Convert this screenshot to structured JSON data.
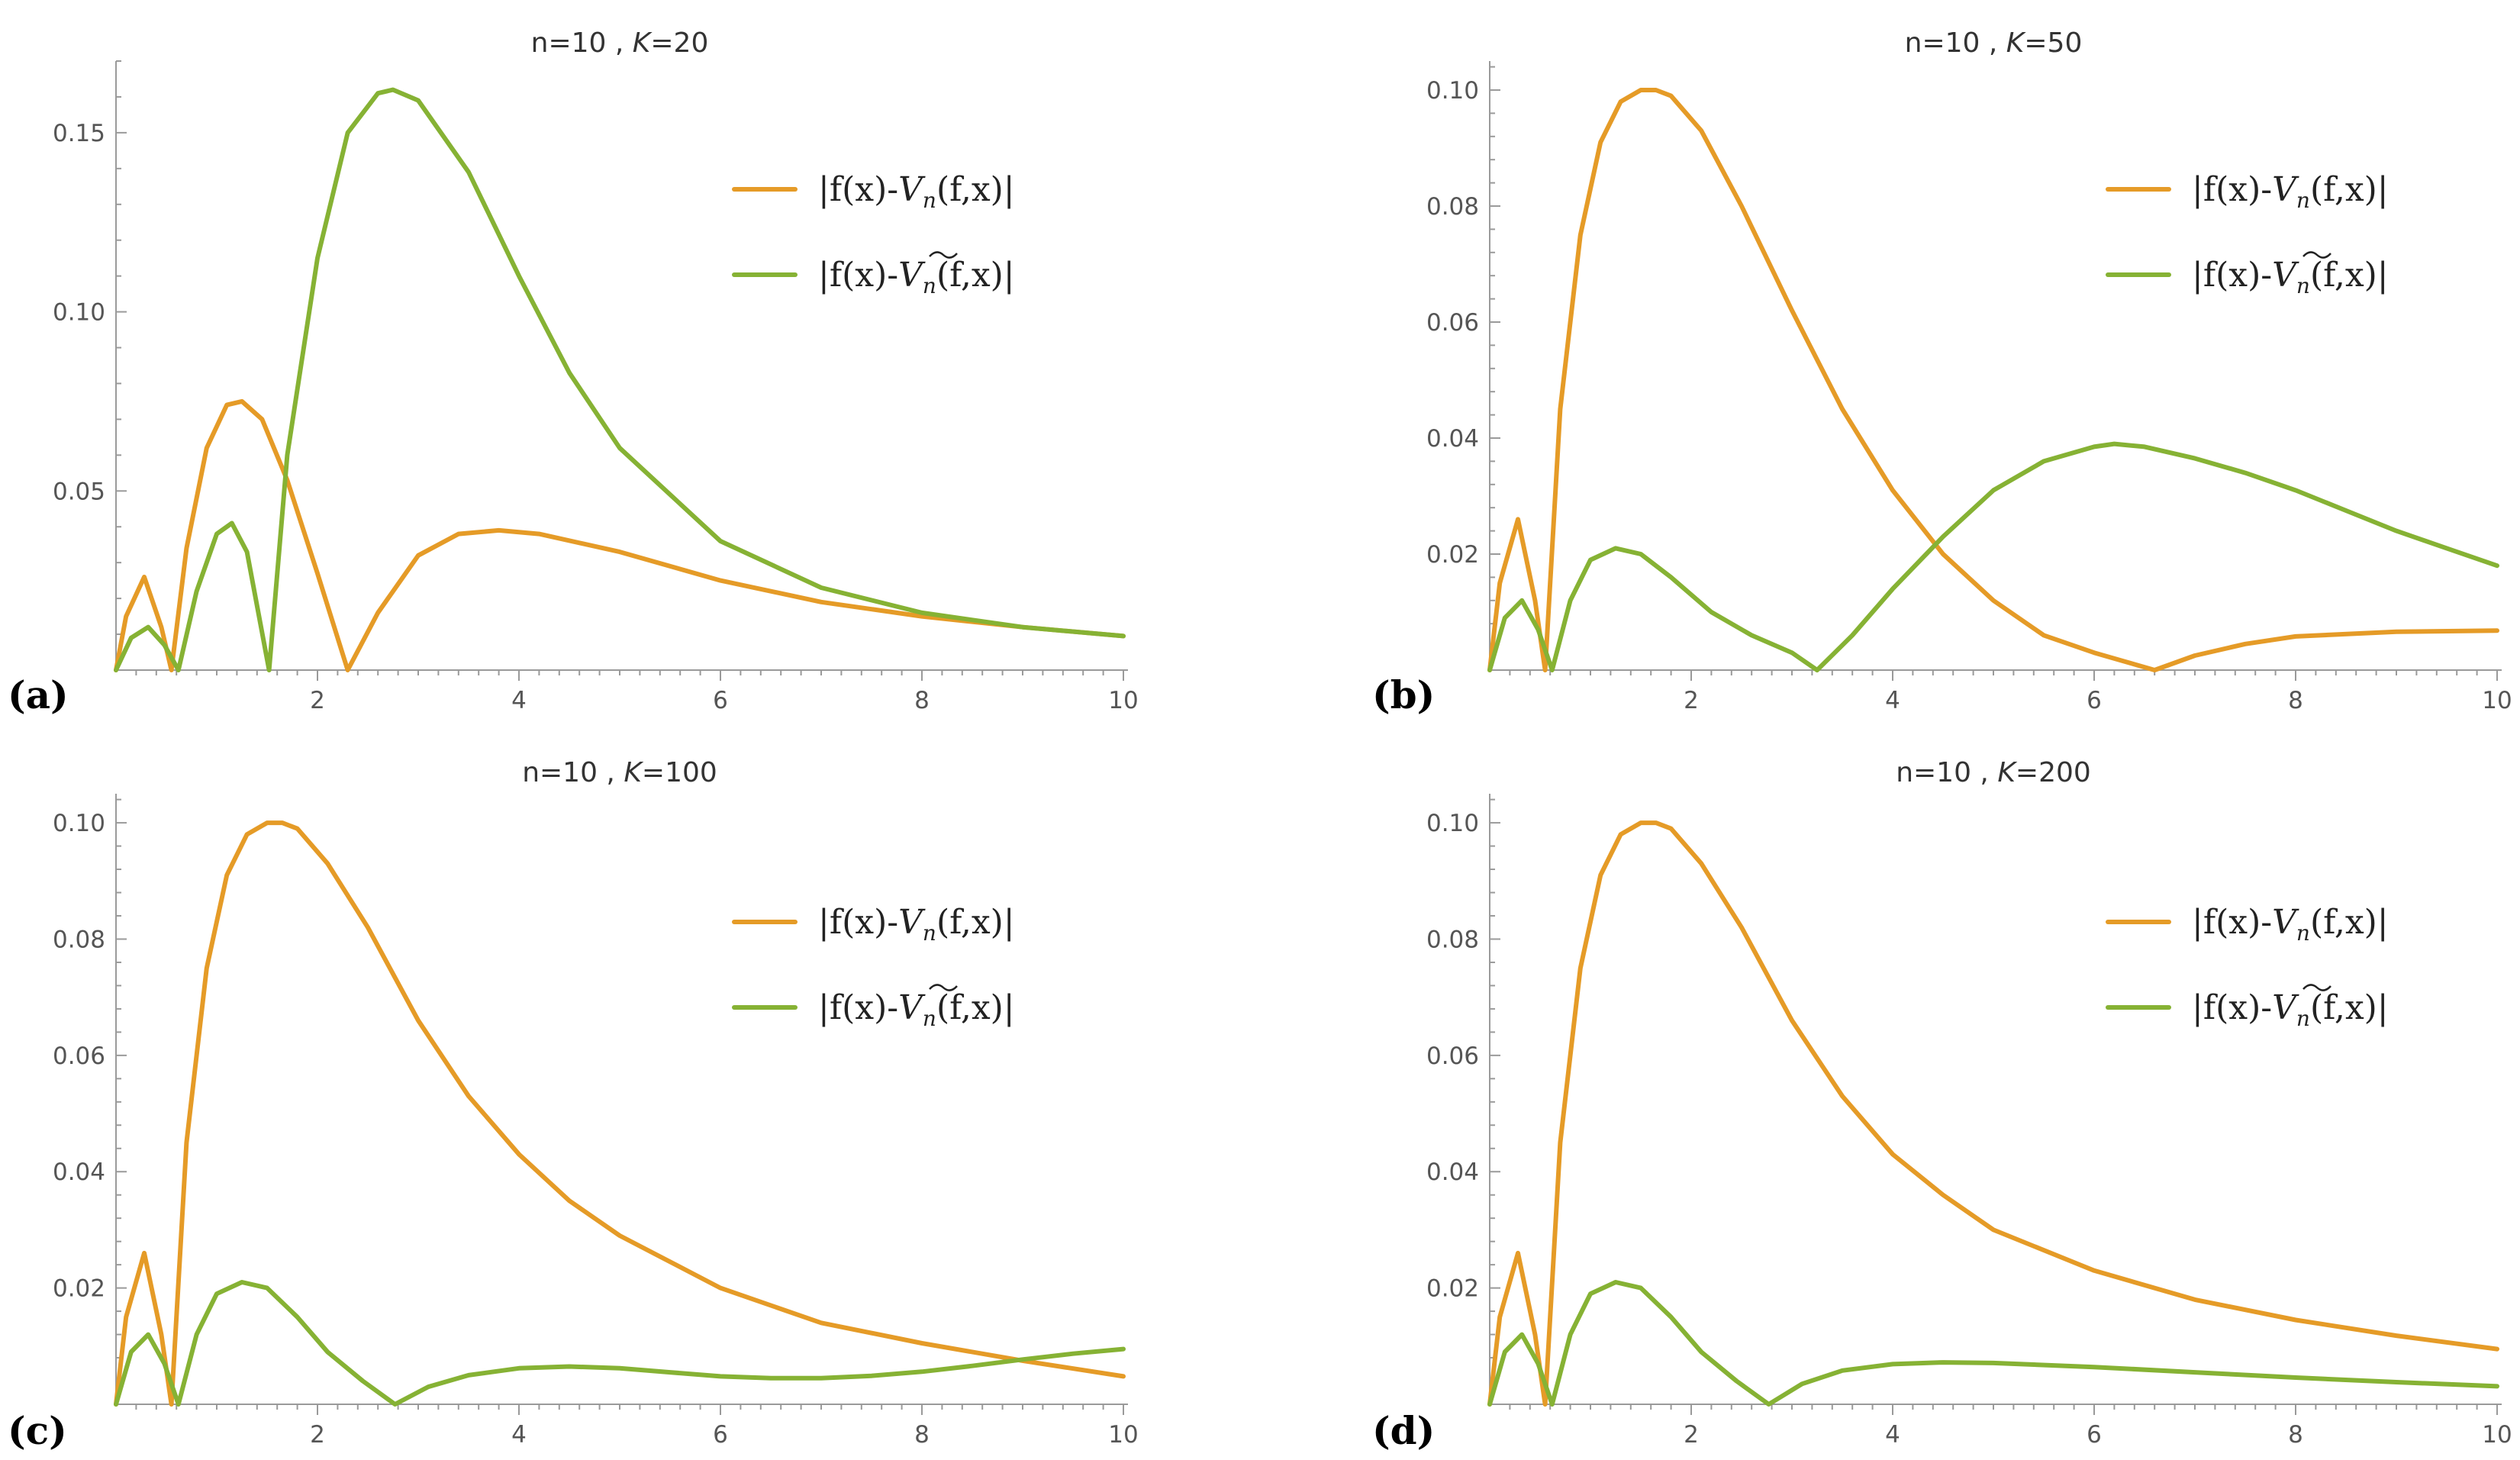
{
  "colors": {
    "orange": "#e59b27",
    "green": "#86b234",
    "axis": "#9a9a9a"
  },
  "chart_data": [
    {
      "type": "line",
      "panel_label": "(a)",
      "title": {
        "n_part": "n=10 ,",
        "k_symbol": "K",
        "k_part": "=20"
      },
      "xlim": [
        0,
        10
      ],
      "ylim": [
        0,
        0.17
      ],
      "x_ticks": [
        2,
        4,
        6,
        8,
        10
      ],
      "x_tick_labels": [
        "2",
        "4",
        "6",
        "8",
        "10"
      ],
      "y_ticks": [
        0.05,
        0.1,
        0.15
      ],
      "y_tick_labels": [
        "0.05",
        "0.10",
        "0.15"
      ],
      "legend": [
        {
          "f_part": "|f(x)-",
          "v_part": "V",
          "sub": "n",
          "end_part": "(f,x)|",
          "tilde": false,
          "color": "#e59b27"
        },
        {
          "f_part": "|f(x)-",
          "v_part": "V",
          "sub": "n",
          "end_part": "(f,x)|",
          "tilde": true,
          "color": "#86b234"
        }
      ],
      "series": [
        {
          "name": "|f(x)-V_n(f,x)|",
          "color": "#e59b27",
          "x": [
            0,
            0.1,
            0.28,
            0.45,
            0.55,
            0.7,
            0.9,
            1.1,
            1.25,
            1.45,
            1.7,
            2.0,
            2.3,
            2.6,
            3.0,
            3.4,
            3.8,
            4.2,
            5.0,
            6.0,
            7.0,
            8.0,
            9.0,
            10.0
          ],
          "values": [
            0,
            0.015,
            0.026,
            0.012,
            0,
            0.034,
            0.062,
            0.074,
            0.075,
            0.07,
            0.053,
            0.027,
            0,
            0.016,
            0.032,
            0.038,
            0.039,
            0.038,
            0.033,
            0.025,
            0.019,
            0.015,
            0.012,
            0.0095
          ]
        },
        {
          "name": "|f(x)-Ṽ_n(f,x)|",
          "color": "#86b234",
          "x": [
            0,
            0.15,
            0.32,
            0.48,
            0.62,
            0.8,
            1.0,
            1.15,
            1.3,
            1.52,
            1.7,
            2.0,
            2.3,
            2.6,
            2.75,
            3.0,
            3.5,
            4.0,
            4.5,
            5.0,
            6.0,
            7.0,
            8.0,
            9.0,
            10.0
          ],
          "values": [
            0,
            0.009,
            0.012,
            0.007,
            0,
            0.022,
            0.038,
            0.041,
            0.033,
            0,
            0.06,
            0.115,
            0.15,
            0.161,
            0.162,
            0.159,
            0.139,
            0.11,
            0.083,
            0.062,
            0.036,
            0.023,
            0.016,
            0.012,
            0.0095
          ]
        }
      ]
    },
    {
      "type": "line",
      "panel_label": "(b)",
      "title": {
        "n_part": "n=10 ,",
        "k_symbol": "K",
        "k_part": "=50"
      },
      "xlim": [
        0,
        10
      ],
      "ylim": [
        0,
        0.105
      ],
      "x_ticks": [
        2,
        4,
        6,
        8,
        10
      ],
      "x_tick_labels": [
        "2",
        "4",
        "6",
        "8",
        "10"
      ],
      "y_ticks": [
        0.02,
        0.04,
        0.06,
        0.08,
        0.1
      ],
      "y_tick_labels": [
        "0.02",
        "0.04",
        "0.06",
        "0.08",
        "0.10"
      ],
      "legend": [
        {
          "f_part": "|f(x)-",
          "v_part": "V",
          "sub": "n",
          "end_part": "(f,x)|",
          "tilde": false,
          "color": "#e59b27"
        },
        {
          "f_part": "|f(x)-",
          "v_part": "V",
          "sub": "n",
          "end_part": "(f,x)|",
          "tilde": true,
          "color": "#86b234"
        }
      ],
      "series": [
        {
          "name": "|f(x)-V_n(f,x)|",
          "color": "#e59b27",
          "x": [
            0,
            0.1,
            0.28,
            0.45,
            0.55,
            0.7,
            0.9,
            1.1,
            1.3,
            1.5,
            1.65,
            1.8,
            2.1,
            2.5,
            3.0,
            3.5,
            4.0,
            4.5,
            5.0,
            5.5,
            6.0,
            6.3,
            6.6,
            7.0,
            7.5,
            8.0,
            9.0,
            10.0
          ],
          "values": [
            0,
            0.015,
            0.026,
            0.012,
            0,
            0.045,
            0.075,
            0.091,
            0.098,
            0.1,
            0.1,
            0.099,
            0.093,
            0.08,
            0.062,
            0.045,
            0.031,
            0.02,
            0.012,
            0.006,
            0.003,
            0.0015,
            0,
            0.0025,
            0.0045,
            0.0058,
            0.0066,
            0.0068
          ]
        },
        {
          "name": "|f(x)-Ṽ_n(f,x)|",
          "color": "#86b234",
          "x": [
            0,
            0.15,
            0.32,
            0.48,
            0.62,
            0.8,
            1.0,
            1.25,
            1.5,
            1.8,
            2.2,
            2.6,
            3.0,
            3.25,
            3.6,
            4.0,
            4.5,
            5.0,
            5.5,
            6.0,
            6.2,
            6.5,
            7.0,
            7.5,
            8.0,
            8.5,
            9.0,
            9.5,
            10.0
          ],
          "values": [
            0,
            0.009,
            0.012,
            0.007,
            0,
            0.012,
            0.019,
            0.021,
            0.02,
            0.016,
            0.01,
            0.006,
            0.003,
            0,
            0.006,
            0.014,
            0.023,
            0.031,
            0.036,
            0.0385,
            0.039,
            0.0385,
            0.0365,
            0.034,
            0.031,
            0.0275,
            0.024,
            0.021,
            0.018
          ]
        }
      ]
    },
    {
      "type": "line",
      "panel_label": "(c)",
      "title": {
        "n_part": "n=10 ,",
        "k_symbol": "K",
        "k_part": "=100"
      },
      "xlim": [
        0,
        10
      ],
      "ylim": [
        0,
        0.105
      ],
      "x_ticks": [
        2,
        4,
        6,
        8,
        10
      ],
      "x_tick_labels": [
        "2",
        "4",
        "6",
        "8",
        "10"
      ],
      "y_ticks": [
        0.02,
        0.04,
        0.06,
        0.08,
        0.1
      ],
      "y_tick_labels": [
        "0.02",
        "0.04",
        "0.06",
        "0.08",
        "0.10"
      ],
      "legend": [
        {
          "f_part": "|f(x)-",
          "v_part": "V",
          "sub": "n",
          "end_part": "(f,x)|",
          "tilde": false,
          "color": "#e59b27"
        },
        {
          "f_part": "|f(x)-",
          "v_part": "V",
          "sub": "n",
          "end_part": "(f,x)|",
          "tilde": true,
          "color": "#86b234"
        }
      ],
      "series": [
        {
          "name": "|f(x)-V_n(f,x)|",
          "color": "#e59b27",
          "x": [
            0,
            0.1,
            0.28,
            0.45,
            0.55,
            0.7,
            0.9,
            1.1,
            1.3,
            1.5,
            1.65,
            1.8,
            2.1,
            2.5,
            3.0,
            3.5,
            4.0,
            4.5,
            5.0,
            6.0,
            7.0,
            8.0,
            9.0,
            10.0
          ],
          "values": [
            0,
            0.015,
            0.026,
            0.012,
            0,
            0.045,
            0.075,
            0.091,
            0.098,
            0.1,
            0.1,
            0.099,
            0.093,
            0.082,
            0.066,
            0.053,
            0.043,
            0.035,
            0.029,
            0.02,
            0.014,
            0.0105,
            0.0075,
            0.0048
          ]
        },
        {
          "name": "|f(x)-Ṽ_n(f,x)|",
          "color": "#86b234",
          "x": [
            0,
            0.15,
            0.32,
            0.48,
            0.62,
            0.8,
            1.0,
            1.25,
            1.5,
            1.8,
            2.1,
            2.45,
            2.77,
            3.1,
            3.5,
            4.0,
            4.5,
            5.0,
            5.5,
            6.0,
            6.5,
            7.0,
            7.5,
            8.0,
            8.5,
            9.0,
            9.5,
            10.0
          ],
          "values": [
            0,
            0.009,
            0.012,
            0.007,
            0,
            0.012,
            0.019,
            0.021,
            0.02,
            0.015,
            0.009,
            0.004,
            0,
            0.003,
            0.005,
            0.0062,
            0.0065,
            0.0062,
            0.0055,
            0.0048,
            0.0045,
            0.0045,
            0.0049,
            0.0056,
            0.0066,
            0.0077,
            0.0087,
            0.0095
          ]
        }
      ]
    },
    {
      "type": "line",
      "panel_label": "(d)",
      "title": {
        "n_part": "n=10 ,",
        "k_symbol": "K",
        "k_part": "=200"
      },
      "xlim": [
        0,
        10
      ],
      "ylim": [
        0,
        0.105
      ],
      "x_ticks": [
        2,
        4,
        6,
        8,
        10
      ],
      "x_tick_labels": [
        "2",
        "4",
        "6",
        "8",
        "10"
      ],
      "y_ticks": [
        0.02,
        0.04,
        0.06,
        0.08,
        0.1
      ],
      "y_tick_labels": [
        "0.02",
        "0.04",
        "0.06",
        "0.08",
        "0.10"
      ],
      "legend": [
        {
          "f_part": "|f(x)-",
          "v_part": "V",
          "sub": "n",
          "end_part": "(f,x)|",
          "tilde": false,
          "color": "#e59b27"
        },
        {
          "f_part": "|f(x)-",
          "v_part": "V",
          "sub": "n",
          "end_part": "(f,x)|",
          "tilde": true,
          "color": "#86b234"
        }
      ],
      "series": [
        {
          "name": "|f(x)-V_n(f,x)|",
          "color": "#e59b27",
          "x": [
            0,
            0.1,
            0.28,
            0.45,
            0.55,
            0.7,
            0.9,
            1.1,
            1.3,
            1.5,
            1.65,
            1.8,
            2.1,
            2.5,
            3.0,
            3.5,
            4.0,
            4.5,
            5.0,
            6.0,
            7.0,
            8.0,
            9.0,
            10.0
          ],
          "values": [
            0,
            0.015,
            0.026,
            0.012,
            0,
            0.045,
            0.075,
            0.091,
            0.098,
            0.1,
            0.1,
            0.099,
            0.093,
            0.082,
            0.066,
            0.053,
            0.043,
            0.036,
            0.03,
            0.023,
            0.018,
            0.0145,
            0.0118,
            0.0095
          ]
        },
        {
          "name": "|f(x)-Ṽ_n(f,x)|",
          "color": "#86b234",
          "x": [
            0,
            0.15,
            0.32,
            0.48,
            0.62,
            0.8,
            1.0,
            1.25,
            1.5,
            1.8,
            2.1,
            2.45,
            2.77,
            3.1,
            3.5,
            4.0,
            4.5,
            5.0,
            6.0,
            7.0,
            8.0,
            9.0,
            10.0
          ],
          "values": [
            0,
            0.009,
            0.012,
            0.007,
            0,
            0.012,
            0.019,
            0.021,
            0.02,
            0.015,
            0.009,
            0.004,
            0,
            0.0035,
            0.0058,
            0.0069,
            0.0072,
            0.0071,
            0.0064,
            0.0055,
            0.0046,
            0.0038,
            0.0031
          ]
        }
      ]
    }
  ]
}
